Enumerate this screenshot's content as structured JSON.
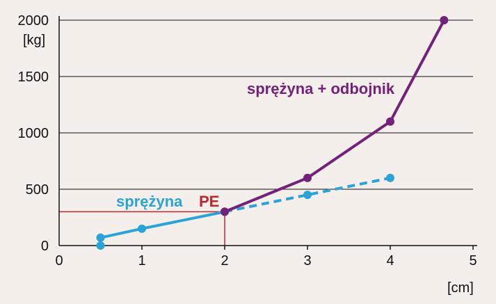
{
  "chart_data": {
    "type": "line",
    "y_unit": "[kg]",
    "x_unit": "[cm]",
    "xlim": [
      0,
      5
    ],
    "ylim": [
      0,
      2000
    ],
    "x_ticks": [
      0,
      1,
      2,
      3,
      4,
      5
    ],
    "y_ticks": [
      0,
      500,
      1000,
      1500,
      2000
    ],
    "y_tick_labels": [
      "0",
      "500",
      "1000",
      "1500",
      "2000"
    ],
    "x_tick_labels": [
      "0",
      "1",
      "2",
      "3",
      "4",
      "5"
    ],
    "grid": "horizontal",
    "series": [
      {
        "name": "sprężyna",
        "color": "#2aa3d8",
        "style": "solid",
        "points": [
          [
            0.5,
            70
          ],
          [
            1,
            150
          ],
          [
            2,
            300
          ]
        ]
      },
      {
        "name": "",
        "color": "#2aa3d8",
        "style": "dashed",
        "points": [
          [
            2,
            300
          ],
          [
            3,
            450
          ],
          [
            4,
            600
          ]
        ]
      },
      {
        "name": "sprężyna + odbojnik",
        "color": "#74217a",
        "style": "solid",
        "points": [
          [
            2,
            300
          ],
          [
            3,
            600
          ],
          [
            4,
            1100
          ],
          [
            4.65,
            2000
          ]
        ]
      },
      {
        "name": "",
        "color": "#2aa3d8",
        "style": "marker-only",
        "points": [
          [
            0.5,
            0
          ]
        ]
      }
    ],
    "annotation": {
      "text": "PE",
      "color": "#c0262d",
      "x": 2,
      "y": 300
    }
  }
}
